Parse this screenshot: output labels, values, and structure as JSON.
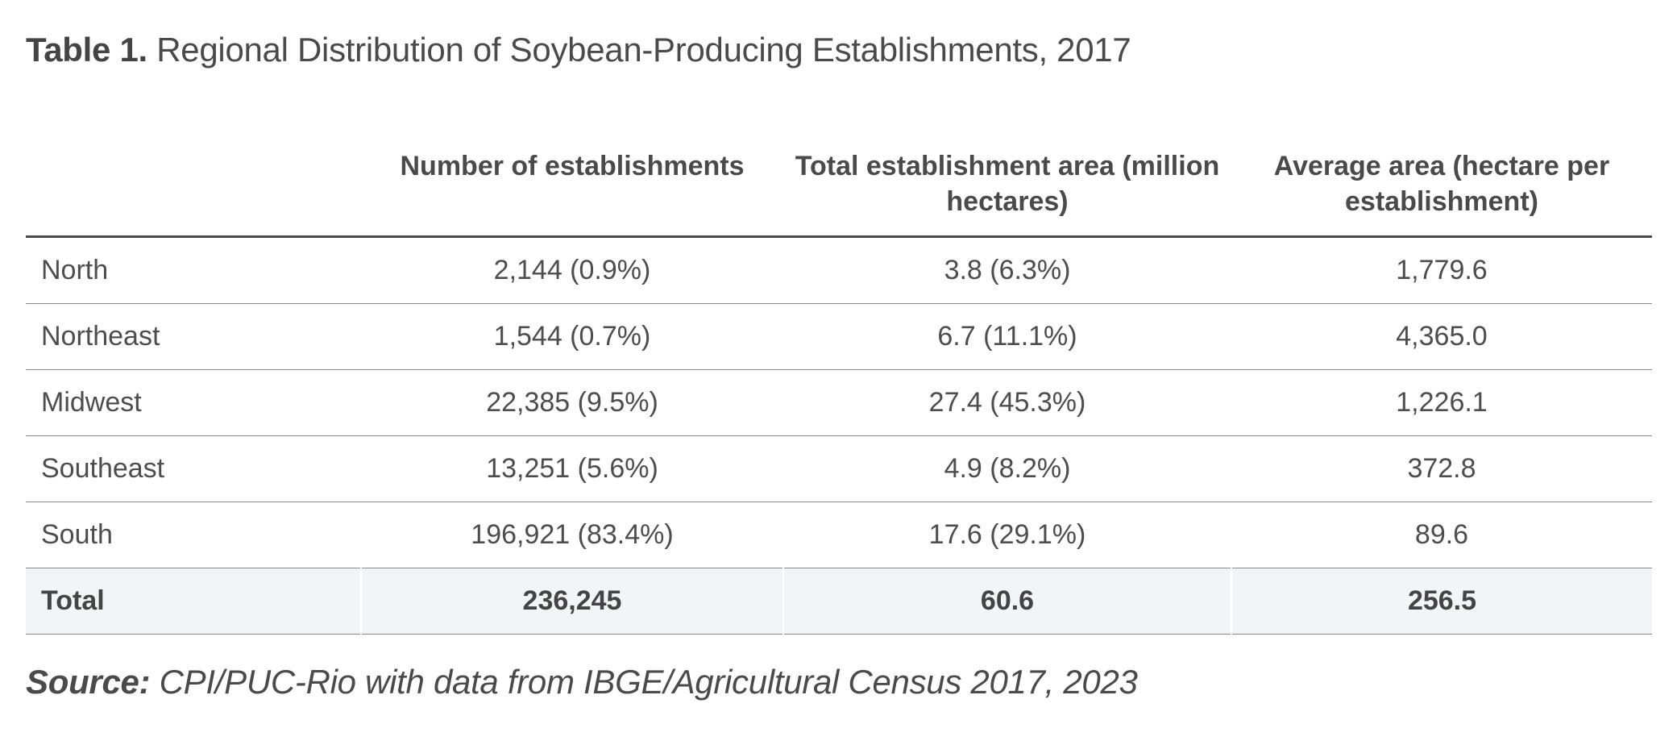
{
  "title": {
    "label": "Table 1.",
    "text": "Regional Distribution of Soybean-Producing Establishments, 2017"
  },
  "table": {
    "columns": [
      "",
      "Number of establishments",
      "Total establishment area (million hectares)",
      "Average area (hectare per establishment)"
    ],
    "rows": [
      {
        "region": "North",
        "establishments": "2,144 (0.9%)",
        "area": "3.8 (6.3%)",
        "average": "1,779.6"
      },
      {
        "region": "Northeast",
        "establishments": "1,544 (0.7%)",
        "area": "6.7 (11.1%)",
        "average": "4,365.0"
      },
      {
        "region": "Midwest",
        "establishments": "22,385 (9.5%)",
        "area": "27.4 (45.3%)",
        "average": "1,226.1"
      },
      {
        "region": "Southeast",
        "establishments": "13,251 (5.6%)",
        "area": "4.9 (8.2%)",
        "average": "372.8"
      },
      {
        "region": "South",
        "establishments": "196,921 (83.4%)",
        "area": "17.6 (29.1%)",
        "average": "89.6"
      }
    ],
    "total": {
      "region": "Total",
      "establishments": "236,245",
      "area": "60.6",
      "average": "256.5"
    }
  },
  "source": {
    "label": "Source:",
    "text": "CPI/PUC-Rio with data from IBGE/Agricultural Census 2017, 2023"
  },
  "colors": {
    "text": "#444444",
    "rule_heavy": "#4a4a4a",
    "rule_light": "#8a8a8a",
    "total_row_bg": "#f3f4f7"
  }
}
